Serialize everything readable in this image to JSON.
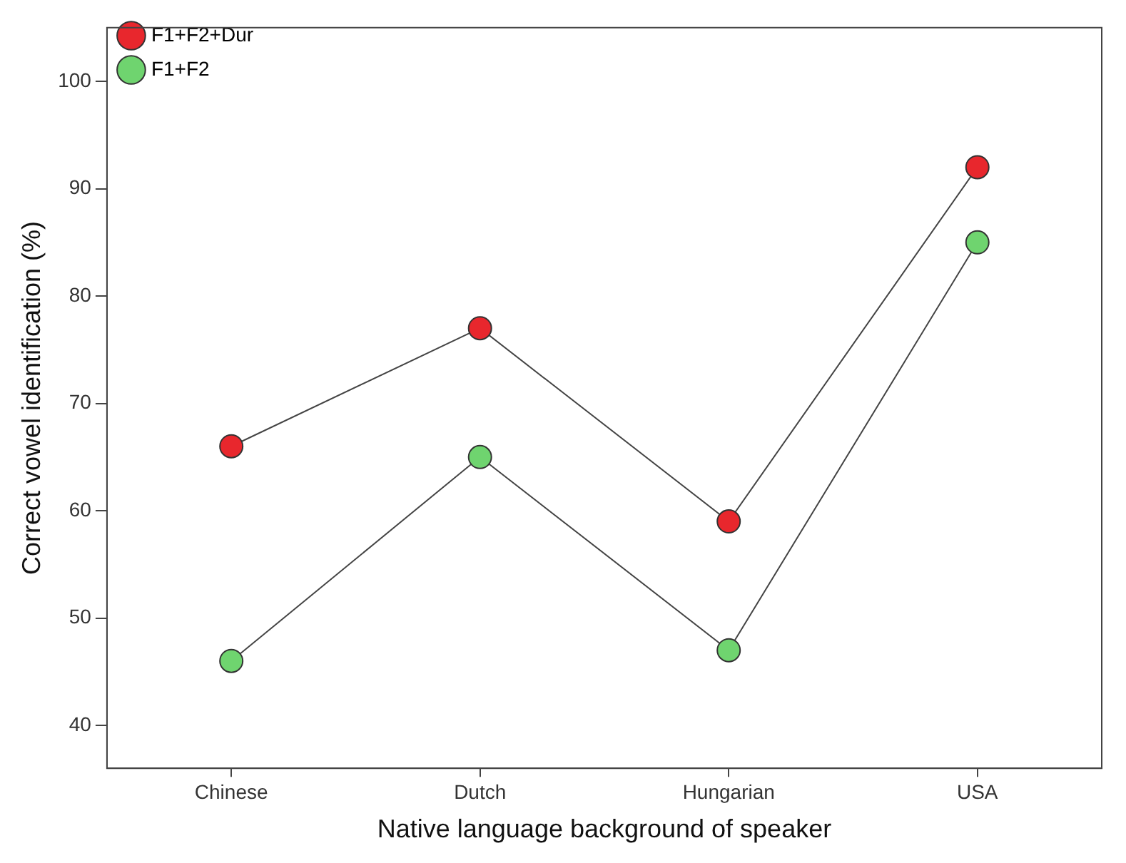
{
  "chart_data": {
    "type": "line",
    "xlabel": "Native language background of speaker",
    "ylabel": "Correct vowel identification (%)",
    "categories": [
      "Chinese",
      "Dutch",
      "Hungarian",
      "USA"
    ],
    "series": [
      {
        "name": "F1+F2+Dur",
        "color": "#e8272d",
        "values": [
          66,
          77,
          59,
          92
        ]
      },
      {
        "name": "F1+F2",
        "color": "#6fd46f",
        "values": [
          46,
          65,
          47,
          85
        ]
      }
    ],
    "ylim": [
      36,
      105
    ],
    "yticks": [
      40,
      50,
      60,
      70,
      80,
      90,
      100
    ],
    "grid": false,
    "legend": "top left",
    "marker": "circle",
    "line_style": "solid"
  }
}
